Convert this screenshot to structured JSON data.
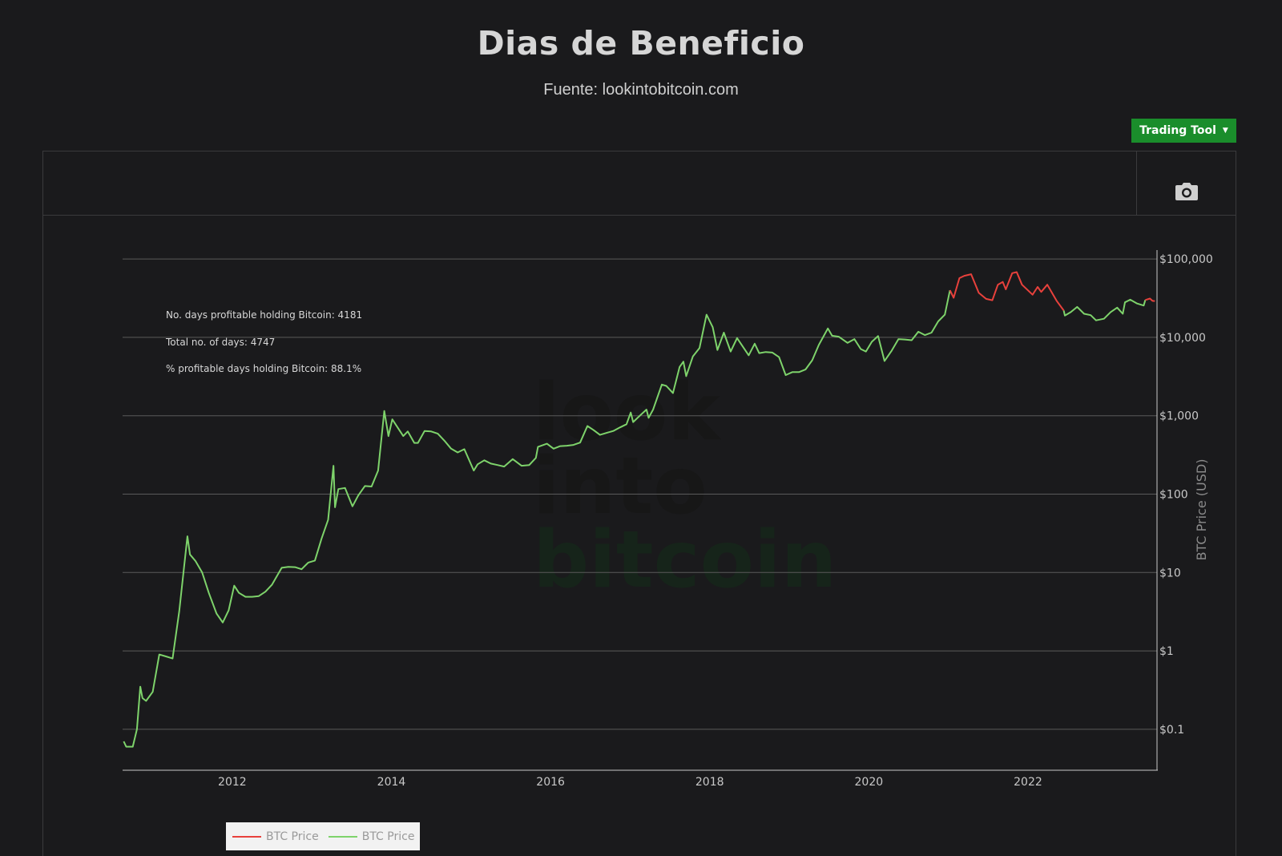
{
  "page": {
    "title": "Dias de Beneficio",
    "subtitle": "Fuente: lookintobitcoin.com"
  },
  "toolbar": {
    "trading_tool_label": "Trading Tool",
    "camera_icon": "camera-icon"
  },
  "watermark": {
    "line1": "look",
    "line2": "into",
    "line3": "bitcoin"
  },
  "annotations": {
    "line1": "No. days profitable holding Bitcoin: 4181",
    "line2": "Total no. of days: 4747",
    "line3": "% profitable days holding Bitcoin: 88.1%"
  },
  "legend": {
    "items": [
      {
        "label": "BTC Price",
        "color": "#e8413c"
      },
      {
        "label": "BTC Price",
        "color": "#7ed36b"
      }
    ]
  },
  "colors": {
    "background": "#1a1a1c",
    "profitable": "#7ed36b",
    "unprofitable": "#e8413c",
    "button": "#1a8d2b"
  },
  "chart_data": {
    "type": "line",
    "title": "Dias de Beneficio",
    "xlabel": "",
    "ylabel": "BTC Price (USD)",
    "y_scale": "log",
    "y_axis_side": "right",
    "ylim": [
      0.03,
      130000
    ],
    "xlim": [
      "2010-08-15",
      "2023-08-15"
    ],
    "x_ticks": [
      "2012",
      "2014",
      "2016",
      "2018",
      "2020",
      "2022"
    ],
    "y_ticks": [
      0.1,
      1,
      10,
      100,
      1000,
      10000,
      100000
    ],
    "y_tick_labels": [
      "$0.1",
      "$1",
      "$10",
      "$100",
      "$1,000",
      "$10,000",
      "$100,000"
    ],
    "grid": true,
    "legend_position": "bottom-left",
    "series": [
      {
        "name": "BTC Price",
        "color": "#7ed36b",
        "status": "profitable",
        "segments": [
          [
            [
              "2010-08-20",
              0.07
            ],
            [
              "2010-09-01",
              0.06
            ],
            [
              "2010-10-01",
              0.06
            ],
            [
              "2010-10-20",
              0.1
            ],
            [
              "2010-11-05",
              0.35
            ],
            [
              "2010-11-15",
              0.25
            ],
            [
              "2010-12-01",
              0.23
            ],
            [
              "2011-01-01",
              0.3
            ],
            [
              "2011-02-01",
              0.9
            ],
            [
              "2011-03-01",
              0.85
            ],
            [
              "2011-04-01",
              0.8
            ],
            [
              "2011-05-01",
              3.2
            ],
            [
              "2011-06-08",
              29
            ],
            [
              "2011-06-20",
              17
            ],
            [
              "2011-07-15",
              14
            ],
            [
              "2011-08-15",
              10
            ],
            [
              "2011-09-15",
              5.5
            ],
            [
              "2011-10-20",
              3.0
            ],
            [
              "2011-11-18",
              2.3
            ],
            [
              "2011-12-15",
              3.3
            ],
            [
              "2012-01-10",
              6.8
            ],
            [
              "2012-02-01",
              5.5
            ],
            [
              "2012-03-01",
              4.9
            ],
            [
              "2012-04-01",
              4.9
            ],
            [
              "2012-05-01",
              5.0
            ],
            [
              "2012-06-01",
              5.7
            ],
            [
              "2012-07-01",
              7.0
            ],
            [
              "2012-08-15",
              11.5
            ],
            [
              "2012-09-15",
              11.8
            ],
            [
              "2012-10-15",
              11.7
            ],
            [
              "2012-11-15",
              11.0
            ],
            [
              "2012-12-15",
              13.4
            ],
            [
              "2013-01-15",
              14.2
            ],
            [
              "2013-02-15",
              27
            ],
            [
              "2013-03-15",
              47
            ],
            [
              "2013-04-09",
              230
            ],
            [
              "2013-04-16",
              68
            ],
            [
              "2013-05-01",
              116
            ],
            [
              "2013-06-01",
              120
            ],
            [
              "2013-07-05",
              70
            ],
            [
              "2013-08-01",
              96
            ],
            [
              "2013-09-01",
              127
            ],
            [
              "2013-10-01",
              125
            ],
            [
              "2013-11-01",
              200
            ],
            [
              "2013-11-29",
              1150
            ],
            [
              "2013-12-18",
              550
            ],
            [
              "2014-01-05",
              900
            ],
            [
              "2014-02-25",
              550
            ],
            [
              "2014-03-15",
              630
            ],
            [
              "2014-04-15",
              450
            ],
            [
              "2014-05-01",
              450
            ],
            [
              "2014-06-01",
              640
            ],
            [
              "2014-07-01",
              630
            ],
            [
              "2014-08-01",
              590
            ],
            [
              "2014-09-01",
              480
            ],
            [
              "2014-10-01",
              380
            ],
            [
              "2014-11-01",
              340
            ],
            [
              "2014-12-01",
              375
            ],
            [
              "2015-01-14",
              200
            ],
            [
              "2015-02-01",
              240
            ],
            [
              "2015-03-01",
              270
            ],
            [
              "2015-04-01",
              245
            ],
            [
              "2015-05-01",
              235
            ],
            [
              "2015-06-01",
              225
            ],
            [
              "2015-07-10",
              280
            ],
            [
              "2015-08-20",
              230
            ],
            [
              "2015-09-25",
              235
            ],
            [
              "2015-10-25",
              290
            ],
            [
              "2015-11-04",
              400
            ],
            [
              "2015-12-15",
              440
            ],
            [
              "2016-01-15",
              380
            ],
            [
              "2016-02-15",
              410
            ],
            [
              "2016-03-15",
              415
            ],
            [
              "2016-04-15",
              425
            ],
            [
              "2016-05-15",
              455
            ],
            [
              "2016-06-18",
              740
            ],
            [
              "2016-07-15",
              660
            ],
            [
              "2016-08-15",
              570
            ],
            [
              "2016-09-15",
              605
            ],
            [
              "2016-10-15",
              640
            ],
            [
              "2016-11-15",
              710
            ],
            [
              "2016-12-15",
              780
            ],
            [
              "2017-01-04",
              1100
            ],
            [
              "2017-01-15",
              830
            ],
            [
              "2017-02-15",
              1000
            ],
            [
              "2017-03-15",
              1200
            ],
            [
              "2017-03-25",
              940
            ],
            [
              "2017-04-15",
              1200
            ],
            [
              "2017-05-25",
              2500
            ],
            [
              "2017-06-15",
              2400
            ],
            [
              "2017-07-15",
              1950
            ],
            [
              "2017-08-15",
              4200
            ],
            [
              "2017-09-02",
              4900
            ],
            [
              "2017-09-15",
              3200
            ],
            [
              "2017-10-15",
              5700
            ],
            [
              "2017-11-15",
              7300
            ],
            [
              "2017-12-17",
              19500
            ],
            [
              "2018-01-15",
              13500
            ],
            [
              "2018-02-06",
              6900
            ],
            [
              "2018-03-05",
              11500
            ],
            [
              "2018-04-06",
              6600
            ],
            [
              "2018-05-05",
              9800
            ],
            [
              "2018-06-28",
              5900
            ],
            [
              "2018-07-25",
              8300
            ],
            [
              "2018-08-15",
              6300
            ],
            [
              "2018-09-15",
              6500
            ],
            [
              "2018-10-15",
              6400
            ],
            [
              "2018-11-15",
              5600
            ],
            [
              "2018-12-15",
              3300
            ],
            [
              "2019-01-15",
              3600
            ],
            [
              "2019-02-15",
              3600
            ],
            [
              "2019-03-15",
              3900
            ],
            [
              "2019-04-15",
              5100
            ],
            [
              "2019-05-15",
              8000
            ],
            [
              "2019-06-26",
              13000
            ],
            [
              "2019-07-15",
              10500
            ],
            [
              "2019-08-15",
              10200
            ],
            [
              "2019-09-25",
              8500
            ],
            [
              "2019-10-26",
              9500
            ],
            [
              "2019-11-25",
              7100
            ],
            [
              "2019-12-18",
              6600
            ],
            [
              "2020-01-15",
              8800
            ],
            [
              "2020-02-13",
              10400
            ],
            [
              "2020-03-12",
              5000
            ],
            [
              "2020-04-15",
              6800
            ],
            [
              "2020-05-15",
              9500
            ],
            [
              "2020-06-15",
              9400
            ],
            [
              "2020-07-15",
              9200
            ],
            [
              "2020-08-15",
              11800
            ],
            [
              "2020-09-15",
              10700
            ],
            [
              "2020-10-15",
              11500
            ],
            [
              "2020-11-15",
              16000
            ],
            [
              "2020-12-15",
              19500
            ],
            [
              "2021-01-08",
              40000
            ]
          ],
          [
            [
              "2022-06-13",
              22000
            ],
            [
              "2022-06-18",
              19000
            ],
            [
              "2022-07-15",
              21000
            ],
            [
              "2022-08-14",
              24500
            ],
            [
              "2022-09-15",
              20000
            ],
            [
              "2022-10-15",
              19200
            ],
            [
              "2022-11-09",
              16500
            ],
            [
              "2022-12-15",
              17300
            ],
            [
              "2023-01-15",
              21000
            ],
            [
              "2023-02-15",
              24000
            ],
            [
              "2023-03-10",
              20000
            ],
            [
              "2023-03-20",
              28000
            ],
            [
              "2023-04-14",
              30300
            ],
            [
              "2023-05-15",
              27000
            ],
            [
              "2023-06-15",
              25500
            ],
            [
              "2023-06-22",
              30000
            ]
          ]
        ]
      },
      {
        "name": "BTC Price",
        "color": "#e8413c",
        "status": "unprofitable",
        "segments": [
          [
            [
              "2021-01-08",
              40000
            ],
            [
              "2021-01-25",
              32000
            ],
            [
              "2021-02-21",
              57000
            ],
            [
              "2021-03-13",
              61000
            ],
            [
              "2021-04-14",
              64000
            ],
            [
              "2021-05-19",
              37000
            ],
            [
              "2021-06-22",
              31000
            ],
            [
              "2021-07-20",
              29800
            ],
            [
              "2021-08-15",
              47000
            ],
            [
              "2021-09-07",
              51000
            ],
            [
              "2021-09-21",
              41000
            ],
            [
              "2021-10-20",
              66000
            ],
            [
              "2021-11-10",
              68000
            ],
            [
              "2021-12-04",
              47000
            ],
            [
              "2022-01-22",
              35000
            ],
            [
              "2022-02-15",
              44000
            ],
            [
              "2022-03-01",
              38000
            ],
            [
              "2022-03-29",
              47000
            ],
            [
              "2022-05-12",
              29000
            ],
            [
              "2022-06-13",
              22000
            ]
          ],
          [
            [
              "2023-06-22",
              30000
            ],
            [
              "2023-07-13",
              31300
            ],
            [
              "2023-07-25",
              29200
            ],
            [
              "2023-08-05",
              29100
            ]
          ]
        ]
      }
    ]
  }
}
